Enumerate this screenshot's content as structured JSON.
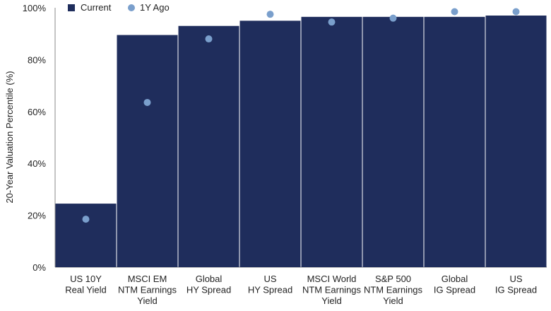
{
  "chart_data": {
    "type": "bar",
    "title": "",
    "xlabel": "",
    "ylabel": "20-Year Valuation Percentile (%)",
    "ylim": [
      0,
      100
    ],
    "yticks": [
      "0%",
      "20%",
      "40%",
      "60%",
      "80%",
      "100%"
    ],
    "ytick_values": [
      0,
      20,
      40,
      60,
      80,
      100
    ],
    "grid": false,
    "legend_position": "top-left",
    "categories": [
      [
        "US 10Y",
        "Real Yield"
      ],
      [
        "MSCI EM",
        "NTM Earnings",
        "Yield"
      ],
      [
        "Global",
        "HY Spread"
      ],
      [
        "US",
        "HY Spread"
      ],
      [
        "MSCI World",
        "NTM Earnings",
        "Yield"
      ],
      [
        "S&P 500",
        "NTM Earnings",
        "Yield"
      ],
      [
        "Global",
        "IG Spread"
      ],
      [
        "US",
        "IG Spread"
      ]
    ],
    "series": [
      {
        "name": "Current",
        "kind": "bar",
        "color": "#1f2d5c",
        "values": [
          24.5,
          89.5,
          93,
          95,
          96.5,
          96.5,
          96.5,
          97
        ]
      },
      {
        "name": "1Y Ago",
        "kind": "marker",
        "color": "#7a9fcc",
        "values": [
          18.5,
          63.5,
          88,
          97.5,
          94.5,
          96,
          98.5,
          98.5
        ]
      }
    ]
  }
}
